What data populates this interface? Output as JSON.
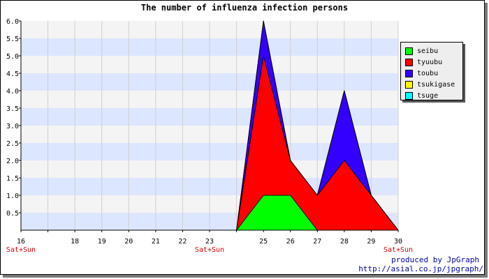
{
  "chart_data": {
    "type": "area",
    "title": "The number of influenza infection persons",
    "stacked": true,
    "x": [
      16,
      17,
      18,
      19,
      20,
      21,
      22,
      23,
      24,
      25,
      26,
      27,
      28,
      29,
      30
    ],
    "x_tick_labels": [
      "16",
      "18",
      "19",
      "20",
      "21",
      "22",
      "23",
      "25",
      "26",
      "27",
      "28",
      "29",
      "30"
    ],
    "x_tick_positions": [
      16,
      18,
      19,
      20,
      21,
      22,
      23,
      25,
      26,
      27,
      28,
      29,
      30
    ],
    "weekend_labels": [
      {
        "x": 16,
        "text": "Sat+Sun"
      },
      {
        "x": 23,
        "text": "Sat+Sun"
      },
      {
        "x": 30,
        "text": "Sat+Sun"
      }
    ],
    "y_ticks": [
      "0.5",
      "1.0",
      "1.5",
      "2.0",
      "2.5",
      "3.0",
      "3.5",
      "4.0",
      "4.5",
      "5.0",
      "5.5",
      "6.0"
    ],
    "ylim": [
      0,
      6
    ],
    "xlim": [
      16,
      30
    ],
    "series": [
      {
        "name": "seibu",
        "color": "#00ff00",
        "values": [
          0,
          0,
          0,
          0,
          0,
          0,
          0,
          0,
          0,
          1,
          1,
          0,
          0,
          0,
          0
        ]
      },
      {
        "name": "tyuubu",
        "color": "#ff0000",
        "values": [
          0,
          0,
          0,
          0,
          0,
          0,
          0,
          0,
          0,
          4,
          1,
          1,
          2,
          1,
          0
        ]
      },
      {
        "name": "toubu",
        "color": "#3300ff",
        "values": [
          0,
          0,
          0,
          0,
          0,
          0,
          0,
          0,
          0,
          1,
          0,
          0,
          2,
          0,
          0
        ]
      },
      {
        "name": "tsukigase",
        "color": "#ffff00",
        "values": [
          0,
          0,
          0,
          0,
          0,
          0,
          0,
          0,
          0,
          0,
          0,
          0,
          0,
          0,
          0
        ]
      },
      {
        "name": "tsuge",
        "color": "#00ffff",
        "values": [
          0,
          0,
          0,
          0,
          0,
          0,
          0,
          0,
          0,
          0,
          0,
          0,
          0,
          0,
          0
        ]
      }
    ],
    "band_colors": [
      "#dde6ff",
      "#f4f4f4"
    ],
    "grid": true,
    "legend_position": "top-right"
  },
  "credits": {
    "line1": "produced by JpGraph",
    "line2": "http://asial.co.jp/jpgraph/"
  }
}
